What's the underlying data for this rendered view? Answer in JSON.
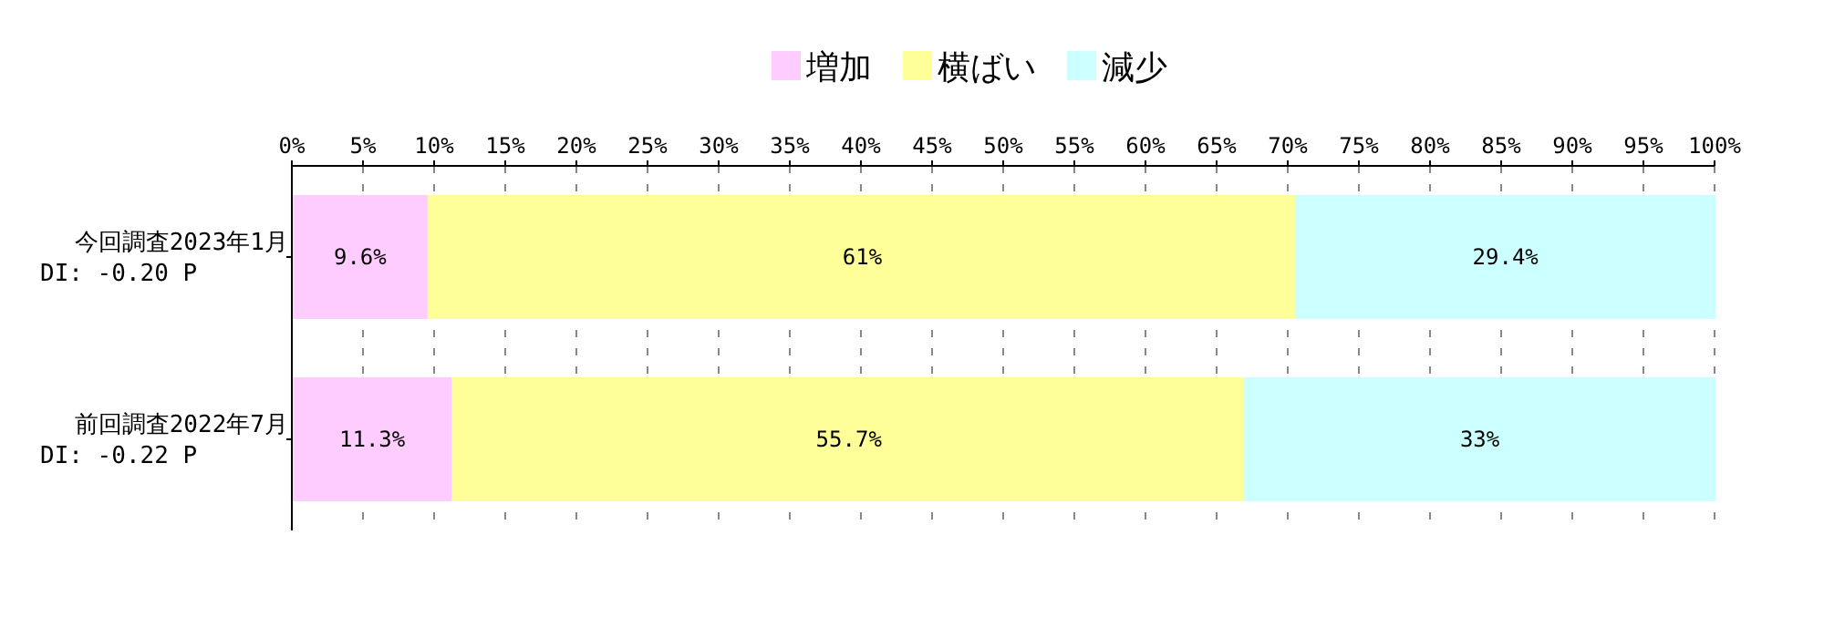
{
  "chart_data": {
    "type": "bar",
    "orientation": "horizontal",
    "stacked": true,
    "categories": [
      "今回調査2023年1月\nDI: -0.20 P",
      "前回調査2022年7月\nDI: -0.22 P"
    ],
    "series": [
      {
        "name": "増加",
        "color": "#ffccff",
        "values": [
          9.6,
          11.3
        ],
        "value_labels": [
          "9.6%",
          "11.3%"
        ]
      },
      {
        "name": "横ばい",
        "color": "#ffff99",
        "values": [
          61,
          55.7
        ],
        "value_labels": [
          "61%",
          "55.7%"
        ]
      },
      {
        "name": "減少",
        "color": "#ccffff",
        "values": [
          29.4,
          33
        ],
        "value_labels": [
          "29.4%",
          "33%"
        ]
      }
    ],
    "xlim": [
      0,
      100
    ],
    "xticks": [
      {
        "value": 0,
        "label": "0%"
      },
      {
        "value": 5,
        "label": "5%"
      },
      {
        "value": 10,
        "label": "10%"
      },
      {
        "value": 15,
        "label": "15%"
      },
      {
        "value": 20,
        "label": "20%"
      },
      {
        "value": 25,
        "label": "25%"
      },
      {
        "value": 30,
        "label": "30%"
      },
      {
        "value": 35,
        "label": "35%"
      },
      {
        "value": 40,
        "label": "40%"
      },
      {
        "value": 45,
        "label": "45%"
      },
      {
        "value": 50,
        "label": "50%"
      },
      {
        "value": 55,
        "label": "55%"
      },
      {
        "value": 60,
        "label": "60%"
      },
      {
        "value": 65,
        "label": "65%"
      },
      {
        "value": 70,
        "label": "70%"
      },
      {
        "value": 75,
        "label": "75%"
      },
      {
        "value": 80,
        "label": "80%"
      },
      {
        "value": 85,
        "label": "85%"
      },
      {
        "value": 90,
        "label": "90%"
      },
      {
        "value": 95,
        "label": "95%"
      },
      {
        "value": 100,
        "label": "100%"
      }
    ],
    "grid": "x",
    "legend": "top"
  }
}
